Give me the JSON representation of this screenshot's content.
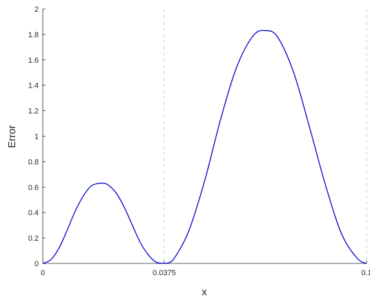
{
  "chart_data": {
    "type": "line",
    "title": "",
    "xlabel": "x",
    "ylabel": "Error",
    "xlim": [
      0,
      0.1
    ],
    "ylim": [
      0,
      2
    ],
    "yticks": [
      0,
      0.2,
      0.4,
      0.6,
      0.8,
      1,
      1.2,
      1.4,
      1.6,
      1.8,
      2
    ],
    "ytick_labels": [
      "0",
      "0.2",
      "0.4",
      "0.6",
      "0.8",
      "1",
      "1.2",
      "1.4",
      "1.6",
      "1.8",
      "2"
    ],
    "xticks": [
      0,
      0.0375,
      0.1
    ],
    "xtick_labels": [
      "0",
      "0.0375",
      "0.1"
    ],
    "vertical_reference_lines": [
      0.0375,
      0.1
    ],
    "series": [
      {
        "color": "#0000cc",
        "x": [
          0,
          0.0025,
          0.005,
          0.0075,
          0.01,
          0.0125,
          0.015,
          0.0175,
          0.01875,
          0.02,
          0.0225,
          0.025,
          0.0275,
          0.03,
          0.0325,
          0.035,
          0.0375,
          0.04,
          0.045,
          0.05,
          0.055,
          0.06,
          0.065,
          0.06875,
          0.0725,
          0.0775,
          0.0825,
          0.0875,
          0.0925,
          0.0975,
          0.1
        ],
        "y": [
          0,
          0.03,
          0.12,
          0.26,
          0.41,
          0.53,
          0.61,
          0.63,
          0.63,
          0.62,
          0.56,
          0.45,
          0.31,
          0.17,
          0.07,
          0.01,
          0,
          0.02,
          0.25,
          0.65,
          1.14,
          1.55,
          1.79,
          1.83,
          1.78,
          1.5,
          1.06,
          0.6,
          0.22,
          0.03,
          0
        ]
      }
    ]
  }
}
